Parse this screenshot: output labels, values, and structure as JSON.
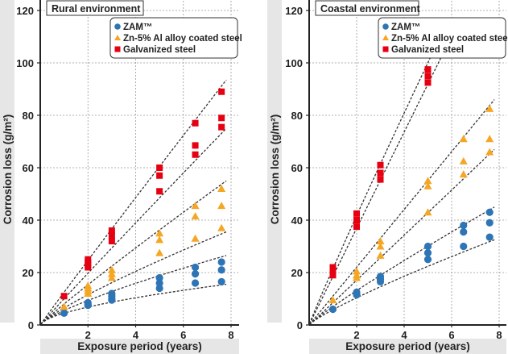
{
  "chart_data": [
    {
      "type": "scatter",
      "title": "Rural environment",
      "xlabel": "Exposure period (years)",
      "ylabel": "Corrosion loss (g/m²)",
      "xlim": [
        0,
        8
      ],
      "ylim": [
        0,
        120
      ],
      "xticks": [
        "2",
        "4",
        "6",
        "8"
      ],
      "xtick_values": [
        2,
        4,
        6,
        8
      ],
      "yticks": [
        "0",
        "20",
        "40",
        "60",
        "80",
        "100",
        "120"
      ],
      "ytick_values": [
        0,
        20,
        40,
        60,
        80,
        100,
        120
      ],
      "grid": true,
      "legend_position": "top-right",
      "series": [
        {
          "name": "ZAM™",
          "marker": "circle",
          "color": "#2e75b6",
          "points": [
            [
              1,
              4.5
            ],
            [
              2,
              8.5
            ],
            [
              2,
              8
            ],
            [
              2,
              7.5
            ],
            [
              3,
              12
            ],
            [
              3,
              11
            ],
            [
              3,
              10
            ],
            [
              3,
              9.5
            ],
            [
              5,
              18
            ],
            [
              5,
              16
            ],
            [
              5,
              14
            ],
            [
              6.5,
              22
            ],
            [
              6.5,
              19.5
            ],
            [
              6.5,
              16
            ],
            [
              7.6,
              24
            ],
            [
              7.6,
              21
            ],
            [
              7.6,
              16.5
            ]
          ],
          "trend_lines": [
            {
              "x": [
                0,
                1,
                7.8
              ],
              "y": [
                0,
                5.5,
                26.5
              ]
            },
            {
              "x": [
                0,
                1,
                7.8
              ],
              "y": [
                0,
                4.5,
                15.5
              ]
            }
          ]
        },
        {
          "name": "Zn-5% Al alloy coated steel",
          "marker": "triangle",
          "color": "#f5a623",
          "points": [
            [
              1,
              7
            ],
            [
              2,
              15
            ],
            [
              2,
              14
            ],
            [
              2,
              13
            ],
            [
              2,
              12
            ],
            [
              3,
              21
            ],
            [
              3,
              19.5
            ],
            [
              3,
              18
            ],
            [
              5,
              35
            ],
            [
              5,
              32.5
            ],
            [
              5,
              27.5
            ],
            [
              6.5,
              45.5
            ],
            [
              6.5,
              41.5
            ],
            [
              6.5,
              33
            ],
            [
              7.6,
              52
            ],
            [
              7.6,
              45.5
            ],
            [
              7.6,
              37
            ]
          ],
          "trend_lines": [
            {
              "x": [
                0,
                1,
                7.8
              ],
              "y": [
                0,
                8,
                55
              ]
            },
            {
              "x": [
                0,
                1,
                7.8
              ],
              "y": [
                0,
                6.5,
                35.5
              ]
            }
          ]
        },
        {
          "name": "Galvanized steel",
          "marker": "square",
          "color": "#e60012",
          "points": [
            [
              1,
              11
            ],
            [
              2,
              25
            ],
            [
              2,
              24
            ],
            [
              2,
              23
            ],
            [
              2,
              22
            ],
            [
              3,
              36
            ],
            [
              3,
              34
            ],
            [
              3,
              32
            ],
            [
              5,
              60
            ],
            [
              5,
              57
            ],
            [
              5,
              51
            ],
            [
              6.5,
              77
            ],
            [
              6.5,
              68.5
            ],
            [
              6.5,
              65
            ],
            [
              7.6,
              89
            ],
            [
              7.6,
              79
            ],
            [
              7.6,
              75.5
            ]
          ],
          "trend_lines": [
            {
              "x": [
                0,
                1,
                7.8
              ],
              "y": [
                0,
                12.5,
                93.5
              ]
            },
            {
              "x": [
                0,
                1,
                7.8
              ],
              "y": [
                0,
                10,
                75
              ]
            }
          ]
        }
      ]
    },
    {
      "type": "scatter",
      "title": "Coastal environment",
      "xlabel": "Exposure period (years)",
      "ylabel": "Corrosion loss (g/m²)",
      "xlim": [
        0,
        8
      ],
      "ylim": [
        0,
        120
      ],
      "xticks": [
        "2",
        "4",
        "6",
        "8"
      ],
      "xtick_values": [
        2,
        4,
        6,
        8
      ],
      "yticks": [
        "0",
        "20",
        "40",
        "60",
        "80",
        "100",
        "120"
      ],
      "ytick_values": [
        0,
        20,
        40,
        60,
        80,
        100,
        120
      ],
      "grid": true,
      "legend_position": "top-right",
      "series": [
        {
          "name": "ZAM™",
          "marker": "circle",
          "color": "#2e75b6",
          "points": [
            [
              1,
              6
            ],
            [
              2,
              12.5
            ],
            [
              2,
              12
            ],
            [
              2,
              11.5
            ],
            [
              3,
              18.5
            ],
            [
              3,
              17.5
            ],
            [
              3,
              16.5
            ],
            [
              5,
              30
            ],
            [
              5,
              27.5
            ],
            [
              5,
              25
            ],
            [
              6.5,
              38
            ],
            [
              6.5,
              35.5
            ],
            [
              6.5,
              30
            ],
            [
              7.6,
              43
            ],
            [
              7.6,
              39
            ],
            [
              7.6,
              33.5
            ]
          ],
          "trend_lines": [
            {
              "x": [
                0,
                1,
                7.8
              ],
              "y": [
                0,
                7,
                45
              ]
            },
            {
              "x": [
                0,
                1,
                7.8
              ],
              "y": [
                0,
                5.8,
                32.5
              ]
            }
          ]
        },
        {
          "name": "Zn-5% Al alloy coated steel",
          "marker": "triangle",
          "color": "#f5a623",
          "points": [
            [
              1,
              9.5
            ],
            [
              2,
              20.5
            ],
            [
              2,
              19
            ],
            [
              2,
              18
            ],
            [
              3,
              32
            ],
            [
              3,
              30
            ],
            [
              3,
              26.5
            ],
            [
              5,
              55
            ],
            [
              5,
              53
            ],
            [
              5,
              43
            ],
            [
              6.5,
              71
            ],
            [
              6.5,
              62.5
            ],
            [
              6.5,
              57.5
            ],
            [
              7.6,
              82.5
            ],
            [
              7.6,
              71
            ],
            [
              7.6,
              66
            ]
          ],
          "trend_lines": [
            {
              "x": [
                0,
                1,
                7.8
              ],
              "y": [
                0,
                11,
                86
              ]
            },
            {
              "x": [
                0,
                1,
                7.8
              ],
              "y": [
                0,
                8.5,
                67
              ]
            }
          ]
        },
        {
          "name": "Galvanized steel",
          "marker": "square",
          "color": "#e60012",
          "points": [
            [
              1,
              22
            ],
            [
              1,
              20.5
            ],
            [
              1,
              19
            ],
            [
              2,
              42.5
            ],
            [
              2,
              40
            ],
            [
              2,
              37.5
            ],
            [
              3,
              61
            ],
            [
              3,
              58
            ],
            [
              3,
              55.5
            ],
            [
              5,
              97.5
            ],
            [
              5,
              95
            ],
            [
              5,
              92.5
            ]
          ],
          "trend_lines": [
            {
              "x": [
                0,
                1,
                5.1
              ],
              "y": [
                0,
                21.5,
                102
              ]
            },
            {
              "x": [
                0,
                1,
                5.55
              ],
              "y": [
                0,
                18.5,
                102
              ]
            }
          ]
        }
      ]
    }
  ]
}
